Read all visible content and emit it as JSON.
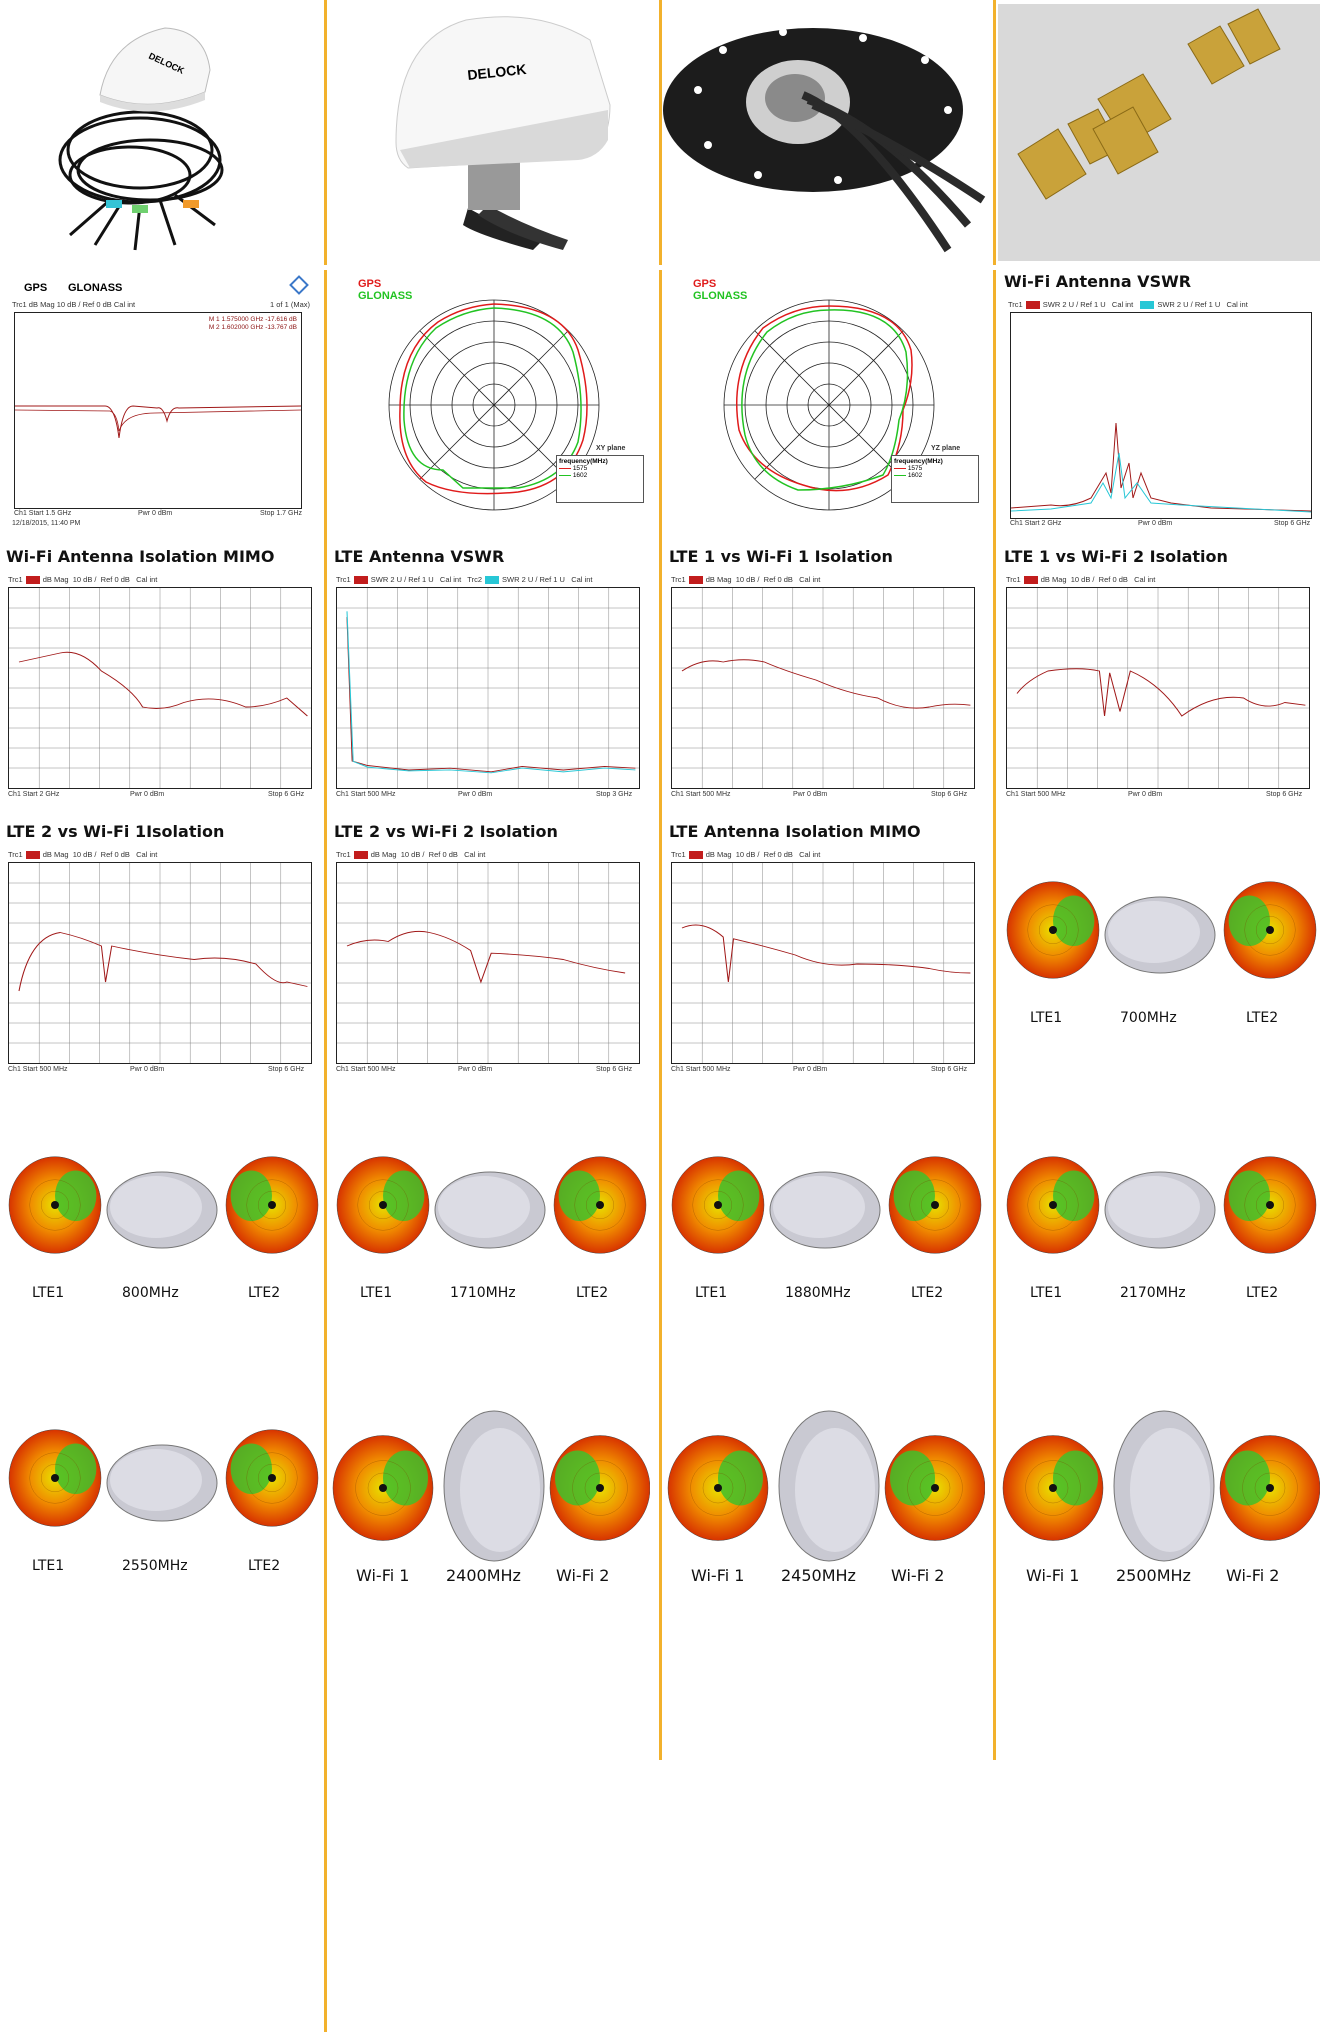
{
  "row2": {
    "gps_label": "GPS",
    "glonass_label": "GLONASS",
    "gps_hdr": "Trc1  dB Mag  10 dB /  Ref 0 dB    Cal int",
    "gps_of": "1 of 1 (Max)",
    "gps_m1": "M 1  1.575000 GHz  -17.616 dB",
    "gps_m2": "M 2  1.602000 GHz  -13.767 dB",
    "gps_foot_start": "Ch1   Start 1.5 GHz",
    "gps_foot_pwr": "Pwr 0 dBm",
    "gps_foot_stop": "Stop 1.7 GHz",
    "gps_date": "12/18/2015, 11:40 PM",
    "polar_xy": "XY plane",
    "polar_yz": "YZ plane",
    "polar_freq": "frequency(MHz)",
    "polar_1575": "1575",
    "polar_1602": "1602",
    "wifi_vswr_title": "Wi-Fi Antenna VSWR"
  },
  "charts": [
    {
      "title": "Wi-Fi Antenna Isolation MIMO",
      "start": "Ch1   Start 2 GHz",
      "pwr": "Pwr 0 dBm",
      "stop": "Stop 6 GHz"
    },
    {
      "title": "LTE Antenna VSWR",
      "start": "Ch1   Start 500 MHz",
      "pwr": "Pwr 0 dBm",
      "stop": "Stop 3 GHz"
    },
    {
      "title": "LTE 1 vs Wi-Fi 1 Isolation",
      "start": "Ch1   Start 500 MHz",
      "pwr": "Pwr 0 dBm",
      "stop": "Stop 6 GHz"
    },
    {
      "title": "LTE 1 vs Wi-Fi 2 Isolation",
      "start": "Ch1   Start 500 MHz",
      "pwr": "Pwr 0 dBm",
      "stop": "Stop 6 GHz"
    },
    {
      "title": "LTE 2 vs Wi-Fi 1Isolation",
      "start": "Ch1   Start 500 MHz",
      "pwr": "Pwr 0 dBm",
      "stop": "Stop 6 GHz"
    },
    {
      "title": "LTE 2 vs Wi-Fi 2 Isolation",
      "start": "Ch1   Start 500 MHz",
      "pwr": "Pwr 0 dBm",
      "stop": "Stop 6 GHz"
    },
    {
      "title": "LTE Antenna Isolation MIMO",
      "start": "Ch1   Start 500 MHz",
      "pwr": "Pwr 0 dBm",
      "stop": "Stop 6 GHz"
    }
  ],
  "wifi_vswr_foot": {
    "start": "Ch1   Start 2 GHz",
    "pwr": "Pwr 0 dBm",
    "stop": "Stop 6 GHz"
  },
  "patterns": [
    {
      "left": "LTE1",
      "freq": "700MHz",
      "right": "LTE2"
    },
    {
      "left": "LTE1",
      "freq": "800MHz",
      "right": "LTE2"
    },
    {
      "left": "LTE1",
      "freq": "1710MHz",
      "right": "LTE2"
    },
    {
      "left": "LTE1",
      "freq": "1880MHz",
      "right": "LTE2"
    },
    {
      "left": "LTE1",
      "freq": "2170MHz",
      "right": "LTE2"
    },
    {
      "left": "LTE1",
      "freq": "2550MHz",
      "right": "LTE2"
    },
    {
      "left": "Wi-Fi 1",
      "freq": "2400MHz",
      "right": "Wi-Fi 2"
    },
    {
      "left": "Wi-Fi 1",
      "freq": "2450MHz",
      "right": "Wi-Fi 2"
    },
    {
      "left": "Wi-Fi 1",
      "freq": "2500MHz",
      "right": "Wi-Fi 2"
    }
  ],
  "brand": "DELOCK",
  "colors": {
    "separator": "#f2b12c",
    "trace_red": "#8a1010",
    "trace_cyan": "#27c7d6",
    "gps_red": "#e01b1b",
    "glonass_green": "#22c322"
  }
}
